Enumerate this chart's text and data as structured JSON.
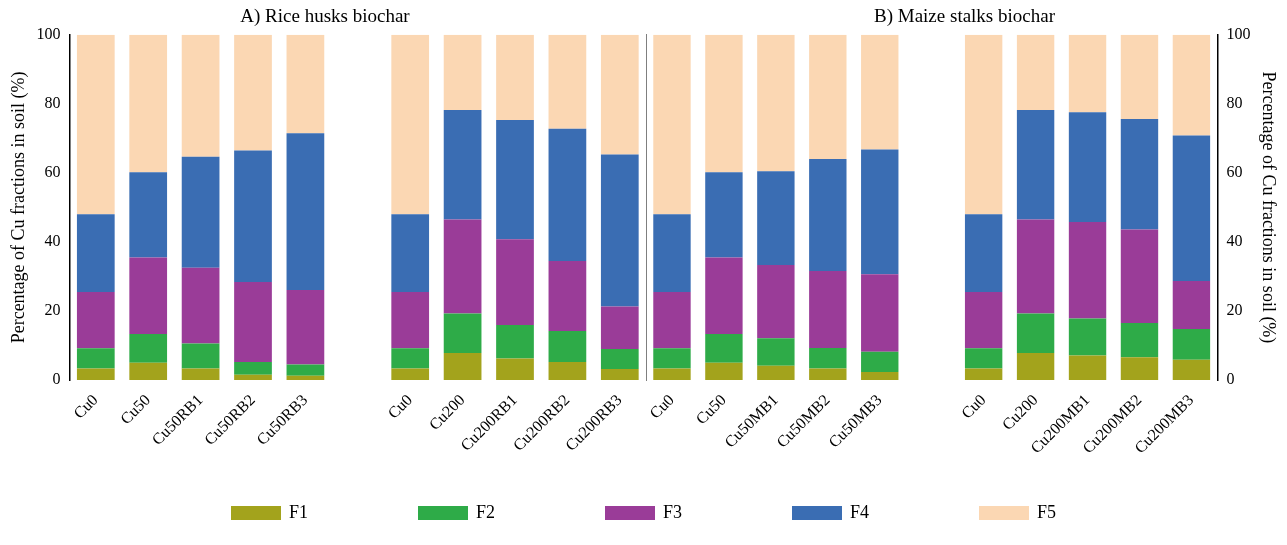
{
  "chart_data": [
    {
      "type": "bar",
      "stacked": true,
      "title": "A) Rice husks biochar",
      "ylabel": "Percentage of Cu fractions in soil (%)",
      "categories": [
        "Cu0",
        "Cu50",
        "Cu50RB1",
        "Cu50RB2",
        "Cu50RB3",
        "Cu0",
        "Cu200",
        "Cu200RB1",
        "Cu200RB2",
        "Cu200RB3"
      ],
      "ylim": [
        0,
        100
      ],
      "yticks": [
        0,
        20,
        40,
        60,
        80,
        100
      ],
      "legend": "bottom",
      "series": [
        {
          "name": "F1",
          "color": "#a3a31c",
          "values": [
            3.3,
            5,
            3.3,
            1.5,
            1.2,
            3.3,
            7.8,
            6.2,
            5.2,
            3.2
          ]
        },
        {
          "name": "F2",
          "color": "#2eab48",
          "values": [
            5.9,
            8.3,
            7.3,
            3.7,
            3.3,
            5.9,
            11.5,
            9.7,
            9.0,
            5.8
          ]
        },
        {
          "name": "F3",
          "color": "#9a3c98",
          "values": [
            16.3,
            22.2,
            21.9,
            23.2,
            21.6,
            16.3,
            27.2,
            24.9,
            20.3,
            12.3
          ]
        },
        {
          "name": "F4",
          "color": "#3a6db3",
          "values": [
            22.5,
            24.7,
            32.2,
            38.1,
            45.4,
            22.5,
            31.7,
            34.5,
            38.3,
            44.0
          ]
        },
        {
          "name": "F5",
          "color": "#fbd7b3",
          "values": [
            52,
            39.8,
            35.3,
            33.5,
            28.5,
            52,
            21.8,
            24.7,
            27.2,
            34.7
          ]
        }
      ]
    },
    {
      "type": "bar",
      "stacked": true,
      "title": "B) Maize stalks biochar",
      "y2label": "Percentage of Cu fractions in soil (%)",
      "categories": [
        "Cu0",
        "Cu50",
        "Cu50MB1",
        "Cu50MB2",
        "Cu50MB3",
        "Cu0",
        "Cu200",
        "Cu200MB1",
        "Cu200MB2",
        "Cu200MB3"
      ],
      "y2lim": [
        0,
        100
      ],
      "y2ticks": [
        0,
        20,
        40,
        60,
        80,
        100
      ],
      "legend": "bottom",
      "series": [
        {
          "name": "F1",
          "color": "#a3a31c",
          "axis": "y2",
          "values": [
            3.3,
            5,
            4.1,
            3.3,
            2.3,
            3.3,
            7.8,
            7.1,
            6.6,
            5.9
          ]
        },
        {
          "name": "F2",
          "color": "#2eab48",
          "axis": "y2",
          "values": [
            5.9,
            8.3,
            8.0,
            6.0,
            5.9,
            5.9,
            11.5,
            10.7,
            9.9,
            8.9
          ]
        },
        {
          "name": "F3",
          "color": "#9a3c98",
          "axis": "y2",
          "values": [
            16.3,
            22.2,
            21.2,
            22.3,
            22.4,
            16.3,
            27.2,
            28.0,
            27.1,
            13.9
          ]
        },
        {
          "name": "F4",
          "color": "#3a6db3",
          "axis": "y2",
          "values": [
            22.5,
            24.7,
            27.2,
            32.4,
            36.2,
            22.5,
            31.7,
            31.8,
            32.0,
            42.1
          ]
        },
        {
          "name": "F5",
          "color": "#fbd7b3",
          "axis": "y2",
          "values": [
            52,
            39.8,
            39.5,
            36,
            33.2,
            52,
            21.8,
            22.4,
            24.4,
            29.2
          ]
        }
      ]
    }
  ]
}
